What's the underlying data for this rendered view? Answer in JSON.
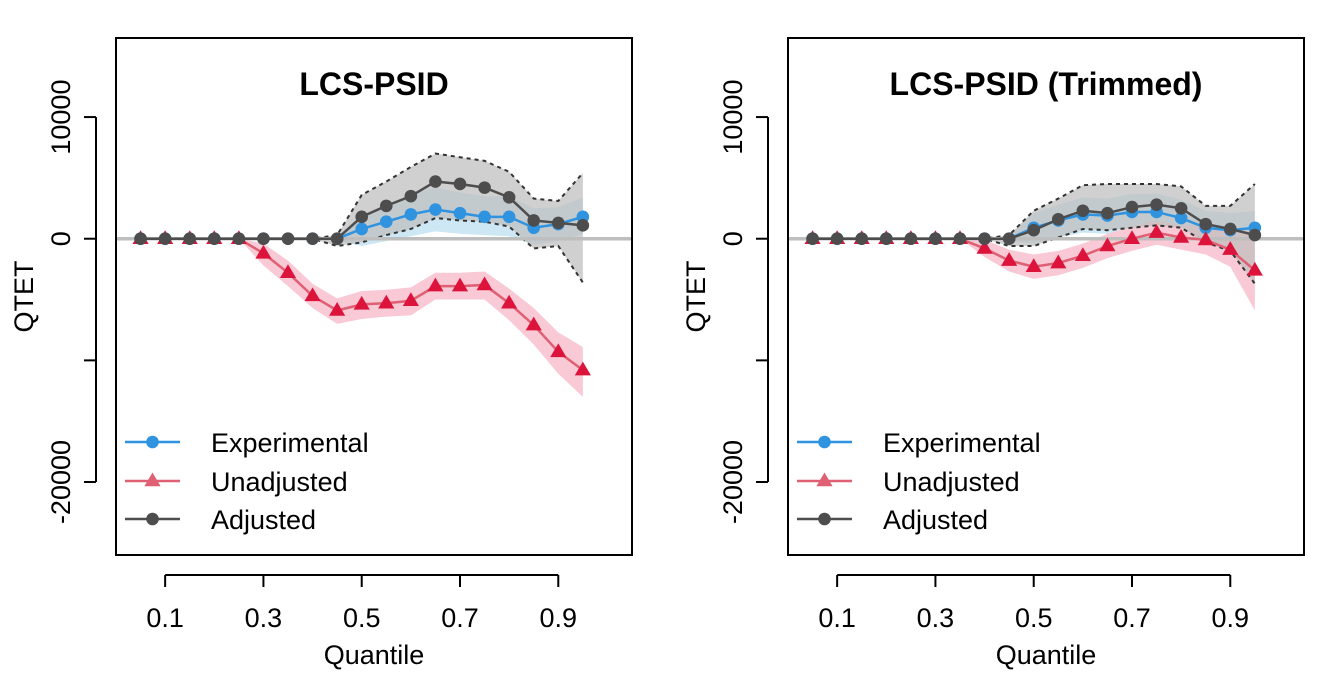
{
  "colors": {
    "experimental": "#2F93E0",
    "experimental_band": "#CDE8F4",
    "unadjusted": "#DC143C",
    "unadjusted_line": "#DF5F73",
    "unadjusted_band": "#F9C9D5",
    "adjusted": "#4D4D4D",
    "adjusted_band": "#BEBEBE",
    "zero_line": "#BEBEBE"
  },
  "chart_data": [
    {
      "type": "line",
      "title": "LCS-PSID",
      "xlabel": "Quantile",
      "ylabel": "QTET",
      "xlim": [
        0.0,
        1.05
      ],
      "ylim": [
        -26000,
        16500
      ],
      "x_ticks": [
        0.1,
        0.3,
        0.5,
        0.7,
        0.9
      ],
      "x_tick_labels": [
        "0.1",
        "0.3",
        "0.5",
        "0.7",
        "0.9"
      ],
      "y_ticks": [
        -20000,
        -10000,
        0,
        10000
      ],
      "y_tick_labels": [
        "-20000",
        "",
        "0",
        "10000"
      ],
      "grid": false,
      "reference_line_y": 0,
      "legend_position": "bottom-left",
      "x": [
        0.05,
        0.1,
        0.15,
        0.2,
        0.25,
        0.3,
        0.35,
        0.4,
        0.45,
        0.5,
        0.55,
        0.6,
        0.65,
        0.7,
        0.75,
        0.8,
        0.85,
        0.9,
        0.95
      ],
      "series": [
        {
          "name": "Experimental",
          "marker": "circle",
          "values": [
            0,
            0,
            0,
            0,
            0,
            0,
            0,
            0,
            0,
            800,
            1400,
            2000,
            2400,
            2100,
            1800,
            1800,
            900,
            1200,
            1800
          ],
          "band_lower": [
            0,
            0,
            0,
            0,
            0,
            0,
            0,
            0,
            -200,
            -600,
            -200,
            200,
            600,
            400,
            300,
            200,
            -500,
            -200,
            400
          ],
          "band_upper": [
            0,
            0,
            0,
            0,
            0,
            0,
            0,
            0,
            200,
            1600,
            2600,
            3600,
            4200,
            3800,
            3500,
            3500,
            2500,
            2600,
            3400
          ]
        },
        {
          "name": "Unadjusted",
          "marker": "triangle",
          "values": [
            0,
            0,
            0,
            0,
            0,
            -1200,
            -2800,
            -4700,
            -5900,
            -5400,
            -5300,
            -5100,
            -3900,
            -3900,
            -3800,
            -5300,
            -7100,
            -9300,
            -10800
          ],
          "band_lower": [
            0,
            0,
            0,
            0,
            0,
            -2200,
            -3900,
            -5700,
            -7000,
            -6600,
            -6400,
            -6300,
            -5000,
            -5000,
            -5000,
            -6700,
            -8700,
            -11100,
            -13000
          ],
          "band_upper": [
            0,
            0,
            0,
            0,
            0,
            -400,
            -1800,
            -3700,
            -4900,
            -4300,
            -4200,
            -4000,
            -2800,
            -2800,
            -2700,
            -4100,
            -5700,
            -7700,
            -8900
          ]
        },
        {
          "name": "Adjusted",
          "marker": "circle",
          "values": [
            0,
            0,
            0,
            0,
            0,
            0,
            0,
            0,
            0,
            1800,
            2700,
            3500,
            4700,
            4500,
            4200,
            3400,
            1500,
            1300,
            1100
          ],
          "band_lower": [
            0,
            0,
            0,
            0,
            0,
            0,
            0,
            0,
            -600,
            -300,
            300,
            800,
            1700,
            1500,
            1400,
            1000,
            -800,
            -600,
            -3600
          ],
          "band_upper": [
            0,
            0,
            0,
            0,
            0,
            0,
            0,
            0,
            300,
            3600,
            4700,
            5900,
            7000,
            6700,
            6400,
            5500,
            3300,
            3100,
            5400
          ]
        }
      ]
    },
    {
      "type": "line",
      "title": "LCS-PSID (Trimmed)",
      "xlabel": "Quantile",
      "ylabel": "QTET",
      "xlim": [
        0.0,
        1.05
      ],
      "ylim": [
        -26000,
        16500
      ],
      "x_ticks": [
        0.1,
        0.3,
        0.5,
        0.7,
        0.9
      ],
      "x_tick_labels": [
        "0.1",
        "0.3",
        "0.5",
        "0.7",
        "0.9"
      ],
      "y_ticks": [
        -20000,
        -10000,
        0,
        10000
      ],
      "y_tick_labels": [
        "-20000",
        "",
        "0",
        "10000"
      ],
      "grid": false,
      "reference_line_y": 0,
      "legend_position": "bottom-left",
      "x": [
        0.05,
        0.1,
        0.15,
        0.2,
        0.25,
        0.3,
        0.35,
        0.4,
        0.45,
        0.5,
        0.55,
        0.6,
        0.65,
        0.7,
        0.75,
        0.8,
        0.85,
        0.9,
        0.95
      ],
      "series": [
        {
          "name": "Experimental",
          "marker": "circle",
          "values": [
            0,
            0,
            0,
            0,
            0,
            0,
            0,
            0,
            0,
            900,
            1500,
            2000,
            1900,
            2200,
            2200,
            1700,
            900,
            700,
            900
          ],
          "band_lower": [
            0,
            0,
            0,
            0,
            0,
            0,
            0,
            0,
            -200,
            -400,
            100,
            500,
            400,
            600,
            600,
            200,
            -500,
            -700,
            -300
          ],
          "band_upper": [
            0,
            0,
            0,
            0,
            0,
            0,
            0,
            0,
            200,
            2100,
            2800,
            3400,
            3300,
            3700,
            3700,
            3200,
            2300,
            2100,
            2300
          ]
        },
        {
          "name": "Unadjusted",
          "marker": "triangle",
          "values": [
            0,
            0,
            0,
            0,
            0,
            0,
            0,
            -800,
            -1800,
            -2300,
            -2000,
            -1400,
            -600,
            0,
            500,
            100,
            -100,
            -900,
            -2600
          ],
          "band_lower": [
            0,
            0,
            0,
            0,
            0,
            0,
            0,
            -1500,
            -2700,
            -3300,
            -3000,
            -2400,
            -1600,
            -1000,
            -500,
            -900,
            -1300,
            -2300,
            -5900
          ],
          "band_upper": [
            0,
            0,
            0,
            0,
            0,
            0,
            0,
            -100,
            -900,
            -1300,
            -1000,
            -400,
            400,
            1000,
            1500,
            1100,
            1100,
            500,
            700
          ]
        },
        {
          "name": "Adjusted",
          "marker": "circle",
          "values": [
            0,
            0,
            0,
            0,
            0,
            0,
            0,
            0,
            0,
            700,
            1600,
            2300,
            2100,
            2600,
            2800,
            2500,
            1200,
            800,
            300
          ],
          "band_lower": [
            0,
            0,
            0,
            0,
            0,
            0,
            0,
            0,
            -600,
            -600,
            100,
            800,
            700,
            900,
            1100,
            900,
            -300,
            -1000,
            -3700
          ],
          "band_upper": [
            0,
            0,
            0,
            0,
            0,
            0,
            0,
            0,
            300,
            2300,
            3300,
            4400,
            4500,
            4500,
            4500,
            4300,
            2700,
            2700,
            4500
          ]
        }
      ]
    }
  ]
}
